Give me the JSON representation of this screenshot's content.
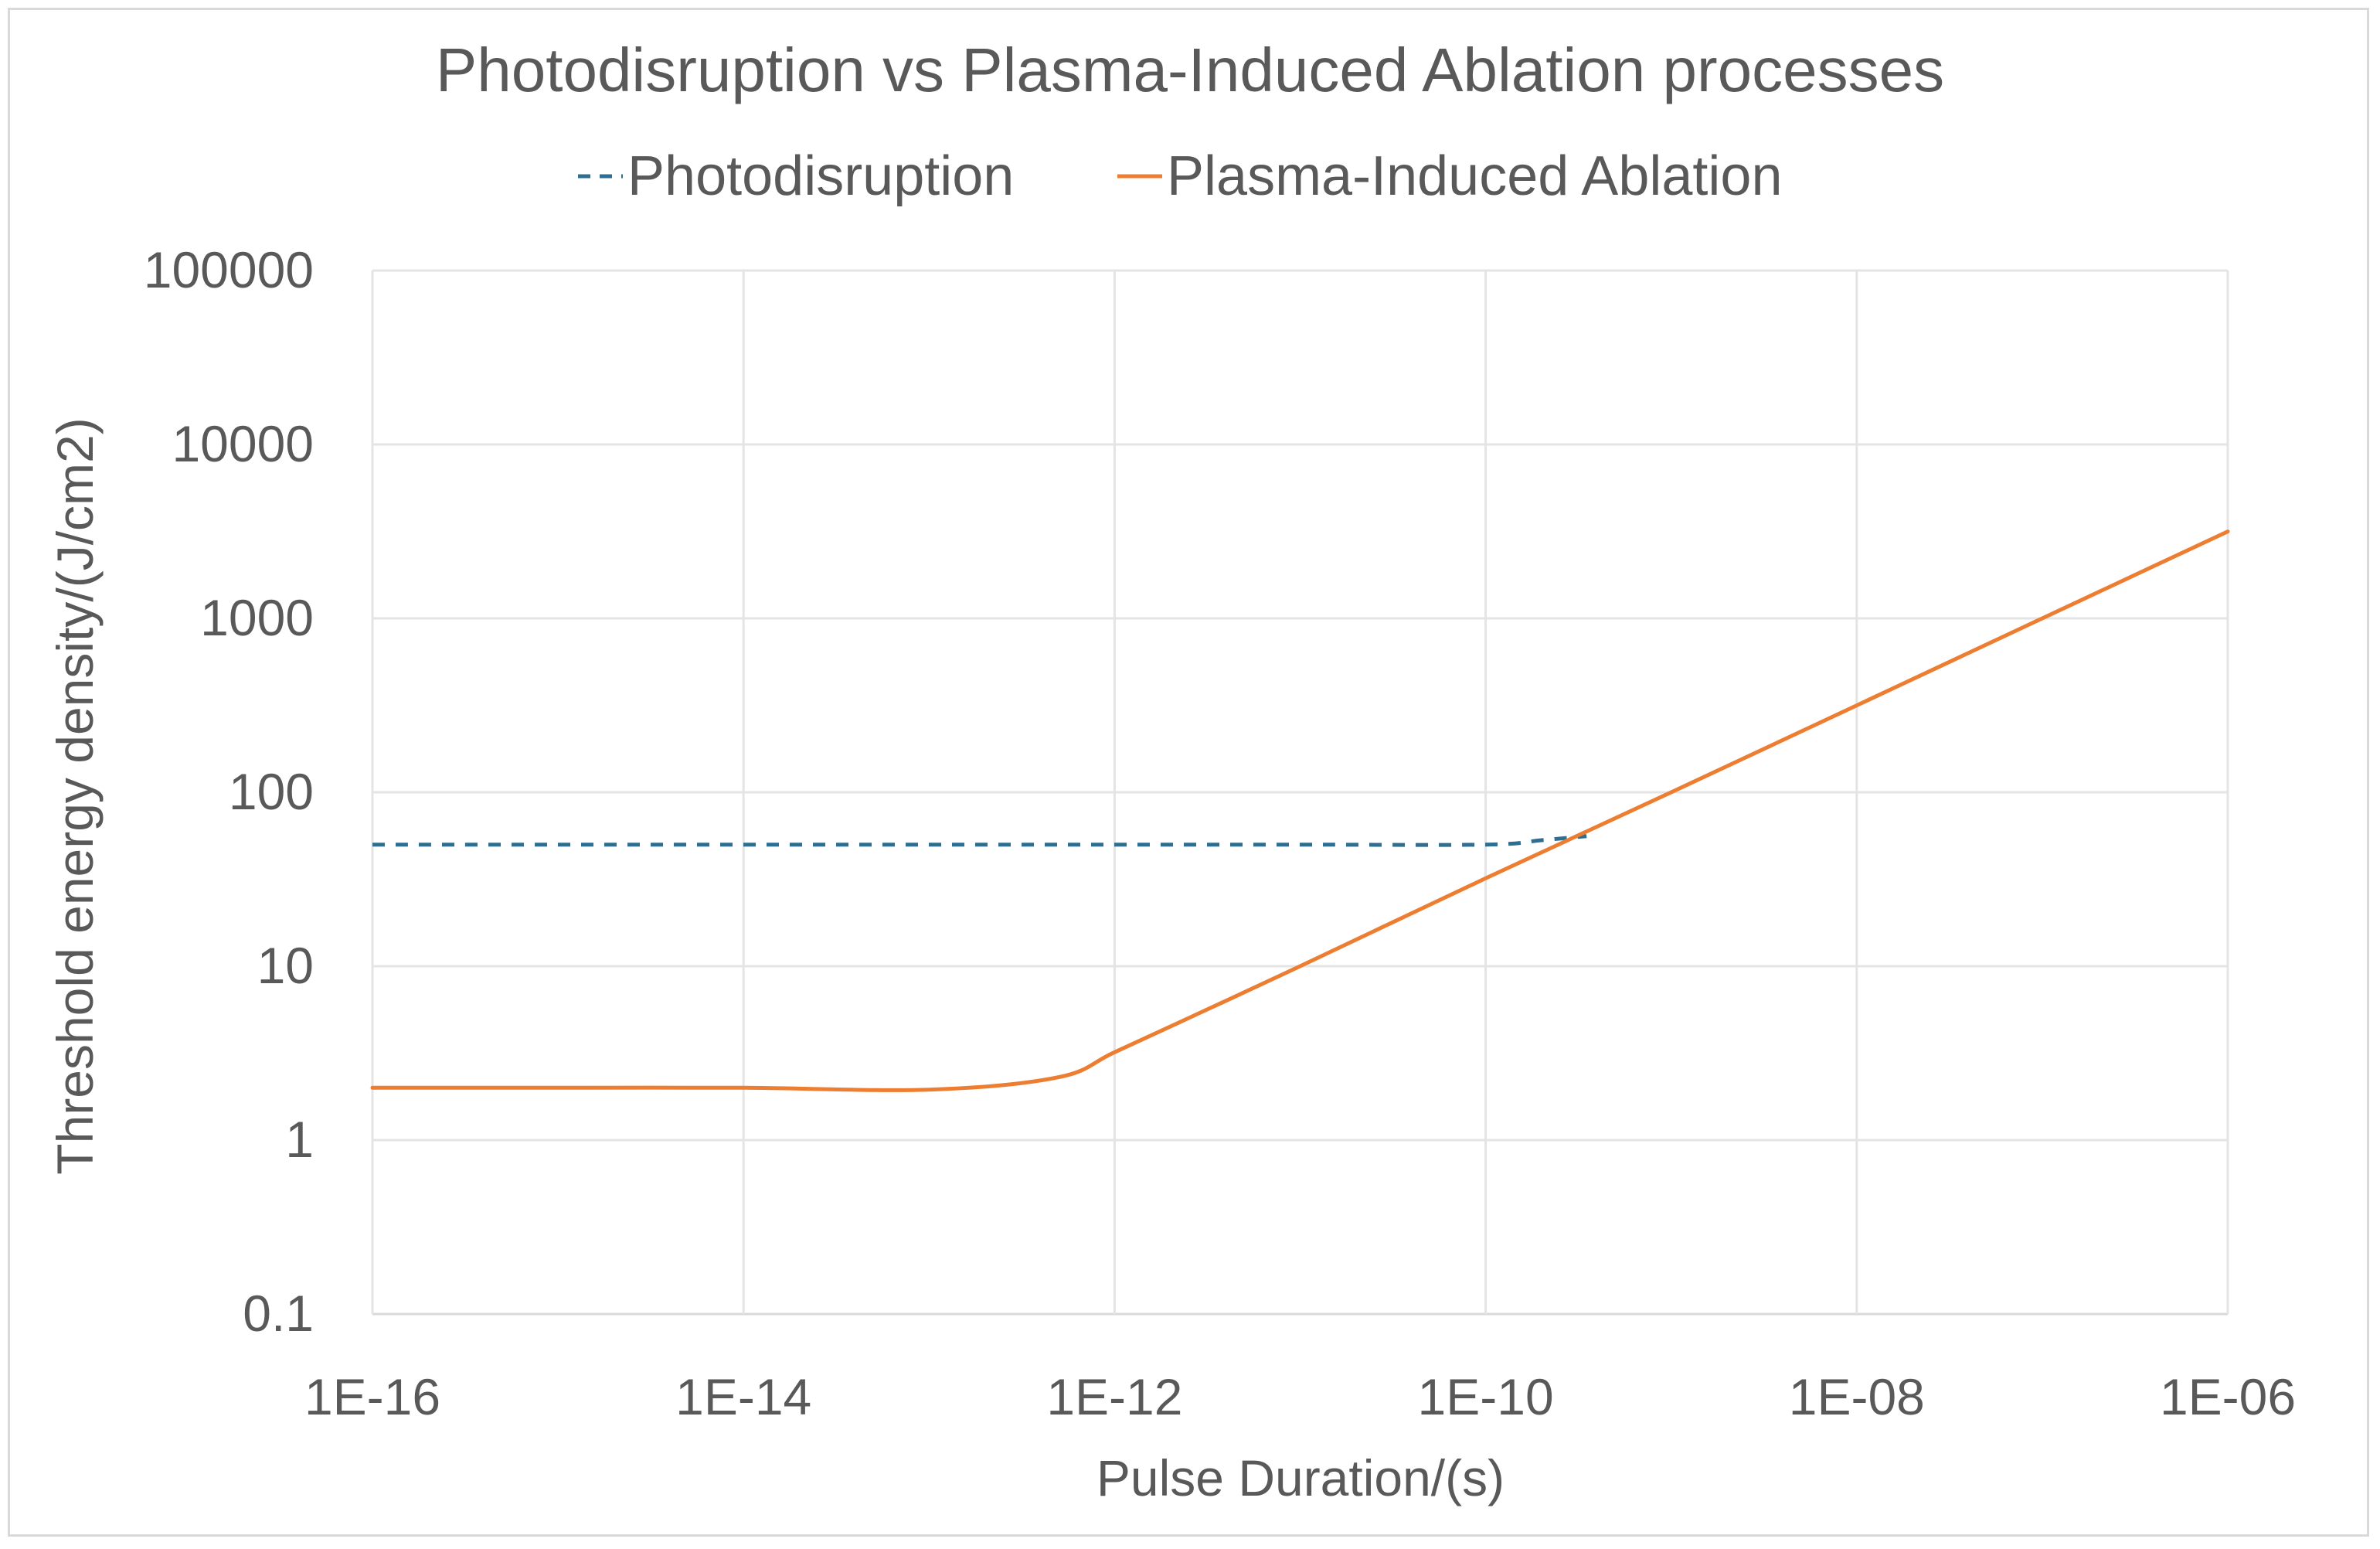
{
  "chart_data": {
    "type": "line",
    "title": "Photodisruption vs Plasma-Induced Ablation processes",
    "xlabel": "Pulse Duration/(s)",
    "ylabel": "Threshold energy density/(J/cm2)",
    "x_scale": "log",
    "y_scale": "log",
    "xlim": [
      1e-16,
      1e-06
    ],
    "ylim": [
      0.1,
      100000
    ],
    "x_ticks": [
      1e-16,
      1e-14,
      1e-12,
      1e-10,
      1e-08,
      1e-06
    ],
    "x_tick_labels": [
      "1E-16",
      "1E-14",
      "1E-12",
      "1E-10",
      "1E-08",
      "1E-06"
    ],
    "y_ticks": [
      0.1,
      1,
      10,
      100,
      1000,
      10000,
      100000
    ],
    "y_tick_labels": [
      "0.1",
      "1",
      "10",
      "100",
      "1000",
      "10000",
      "100000"
    ],
    "grid": true,
    "legend_position": "top",
    "series": [
      {
        "name": "Photodisruption",
        "style": "dashed",
        "color": "#2e6e91",
        "x": [
          1e-16,
          1e-15,
          1e-14,
          1e-13,
          1e-12,
          1e-11,
          1e-10,
          2e-10,
          3.5e-10
        ],
        "y": [
          50,
          50,
          50,
          50,
          50,
          50,
          50,
          53,
          56
        ]
      },
      {
        "name": "Plasma-Induced Ablation",
        "style": "solid",
        "color": "#ed7d31",
        "x": [
          1e-16,
          1e-15,
          1e-14,
          1e-13,
          5e-13,
          1e-12,
          3e-12,
          1e-11,
          1e-10,
          1e-09,
          1e-08,
          1e-07,
          1e-06
        ],
        "y": [
          2,
          2,
          2,
          1.95,
          2.3,
          3.2,
          5.5,
          10,
          32,
          100,
          316,
          1000,
          3160
        ]
      }
    ]
  }
}
